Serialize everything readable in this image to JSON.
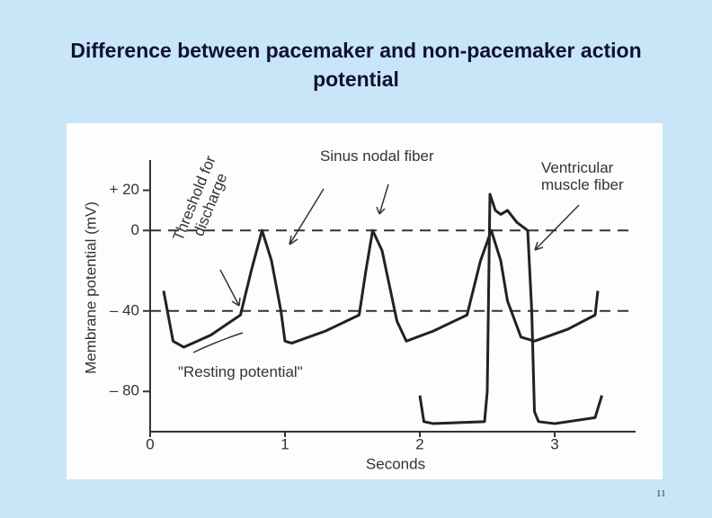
{
  "chart_data": {
    "type": "line",
    "title": "Difference between pacemaker and non-pacemaker action potential",
    "xlabel": "Seconds",
    "ylabel": "Membrane potential (mV)",
    "xlim": [
      0,
      3.6
    ],
    "ylim": [
      -100,
      35
    ],
    "xticks": [
      0,
      1,
      2,
      3
    ],
    "yticks": [
      {
        "value": 20,
        "label": "+ 20"
      },
      0,
      {
        "value": -40,
        "label": "– 40"
      },
      {
        "value": -80,
        "label": "– 80"
      }
    ],
    "hlines": [
      0,
      -40
    ],
    "annotations": [
      "Threshold for discharge",
      "\"Resting potential\""
    ],
    "series": [
      {
        "name": "Sinus nodal fiber",
        "color": "#222222",
        "x": [
          0.1,
          0.17,
          0.25,
          0.45,
          0.67,
          0.75,
          0.83,
          0.9,
          0.97,
          1.0,
          1.05,
          1.3,
          1.55,
          1.6,
          1.65,
          1.72,
          1.83,
          1.9,
          2.1,
          2.35,
          2.45,
          2.53,
          2.6,
          2.65,
          2.75,
          2.85,
          3.1,
          3.3,
          3.32
        ],
        "values": [
          -30,
          -55,
          -58,
          -52,
          -42,
          -20,
          0,
          -15,
          -40,
          -55,
          -56,
          -50,
          -42,
          -20,
          0,
          -10,
          -45,
          -55,
          -50,
          -42,
          -15,
          0,
          -15,
          -35,
          -53,
          -55,
          -49,
          -42,
          -30
        ]
      },
      {
        "name": "Ventricular muscle fiber",
        "color": "#222222",
        "x": [
          2.0,
          2.03,
          2.1,
          2.48,
          2.5,
          2.52,
          2.56,
          2.6,
          2.65,
          2.72,
          2.8,
          2.83,
          2.85,
          2.88,
          3.0,
          3.3,
          3.35
        ],
        "values": [
          -82,
          -95,
          -96,
          -95,
          -80,
          18,
          10,
          8,
          10,
          4,
          0,
          -40,
          -90,
          -95,
          -96,
          -93,
          -82
        ]
      }
    ]
  },
  "page_number": "11"
}
